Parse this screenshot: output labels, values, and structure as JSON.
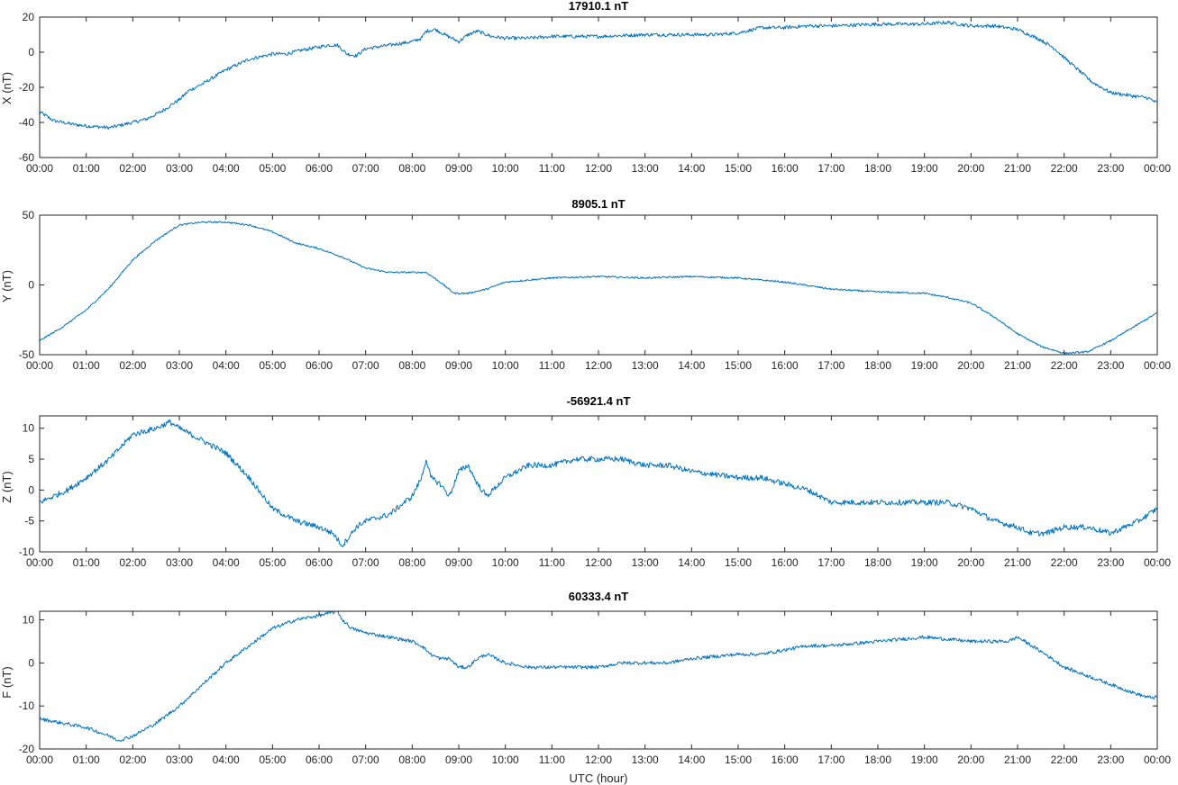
{
  "figure": {
    "x_label": "UTC (hour)"
  },
  "chart_data": [
    {
      "type": "line",
      "title": "17910.1 nT",
      "ylabel": "X (nT)",
      "xlim": [
        0,
        24
      ],
      "ylim": [
        -60,
        20
      ],
      "yticks": [
        -60,
        -40,
        -20,
        0,
        20
      ],
      "xtick_labels": [
        "00:00",
        "01:00",
        "02:00",
        "03:00",
        "04:00",
        "05:00",
        "06:00",
        "07:00",
        "08:00",
        "09:00",
        "10:00",
        "11:00",
        "12:00",
        "13:00",
        "14:00",
        "15:00",
        "16:00",
        "17:00",
        "18:00",
        "19:00",
        "20:00",
        "21:00",
        "22:00",
        "23:00",
        "00:00"
      ],
      "color": "#0072BD",
      "noise": 1.0,
      "series": [
        {
          "x": [
            0,
            0.3,
            0.7,
            1.0,
            1.5,
            2.0,
            2.3,
            2.6,
            3.0,
            3.2,
            3.5,
            4.0,
            4.5,
            5.0,
            5.3,
            5.6,
            6.0,
            6.2,
            6.4,
            6.6,
            6.8,
            7.0,
            7.5,
            8.0,
            8.2,
            8.3,
            8.5,
            8.7,
            9.0,
            9.2,
            9.4,
            9.7,
            10.0,
            10.5,
            11.0,
            11.5,
            12.0,
            13.0,
            14.0,
            14.5,
            15.0,
            15.5,
            16.0,
            16.5,
            17.0,
            18.0,
            19.0,
            19.5,
            20.0,
            20.5,
            21.0,
            21.5,
            21.8,
            22.0,
            22.3,
            22.6,
            23.0,
            23.5,
            23.8,
            24.0
          ],
          "values": [
            -34,
            -39,
            -41,
            -42,
            -43,
            -40,
            -38,
            -34,
            -27,
            -22,
            -18,
            -10,
            -4,
            -1,
            -1,
            1,
            3,
            4,
            4,
            -1,
            -2,
            2,
            4,
            6,
            8,
            12,
            13,
            10,
            6,
            10,
            12,
            9,
            8,
            8,
            9,
            9,
            9,
            10,
            10,
            10,
            11,
            14,
            14,
            15,
            15,
            16,
            16,
            17,
            15,
            15,
            13,
            7,
            2,
            -3,
            -10,
            -17,
            -23,
            -25,
            -26,
            -29
          ]
        }
      ]
    },
    {
      "type": "line",
      "title": "8905.1 nT",
      "ylabel": "Y (nT)",
      "xlim": [
        0,
        24
      ],
      "ylim": [
        -50,
        50
      ],
      "yticks": [
        -50,
        0,
        50
      ],
      "xtick_labels": [
        "00:00",
        "01:00",
        "02:00",
        "03:00",
        "04:00",
        "05:00",
        "06:00",
        "07:00",
        "08:00",
        "09:00",
        "10:00",
        "11:00",
        "12:00",
        "13:00",
        "14:00",
        "15:00",
        "16:00",
        "17:00",
        "18:00",
        "19:00",
        "20:00",
        "21:00",
        "22:00",
        "23:00",
        "00:00"
      ],
      "color": "#0072BD",
      "noise": 0.6,
      "series": [
        {
          "x": [
            0,
            0.5,
            1.0,
            1.5,
            2.0,
            2.5,
            3.0,
            3.5,
            4.0,
            4.5,
            5.0,
            5.5,
            6.0,
            6.5,
            7.0,
            7.5,
            8.0,
            8.3,
            8.6,
            8.9,
            9.2,
            9.6,
            10.0,
            11.0,
            12.0,
            13.0,
            14.0,
            15.0,
            16.0,
            17.0,
            18.0,
            19.0,
            19.5,
            20.0,
            20.5,
            21.0,
            21.5,
            22.0,
            22.5,
            23.0,
            23.5,
            24.0
          ],
          "values": [
            -40,
            -30,
            -18,
            -2,
            18,
            32,
            43,
            45,
            45,
            43,
            38,
            30,
            26,
            20,
            12,
            9,
            9,
            9,
            2,
            -6,
            -6,
            -3,
            2,
            5,
            6,
            5,
            6,
            5,
            2,
            -3,
            -5,
            -6,
            -9,
            -13,
            -23,
            -35,
            -44,
            -49,
            -48,
            -40,
            -30,
            -20
          ]
        }
      ]
    },
    {
      "type": "line",
      "title": "-56921.4 nT",
      "ylabel": "Z (nT)",
      "xlim": [
        0,
        24
      ],
      "ylim": [
        -10,
        12
      ],
      "yticks": [
        -10,
        -5,
        0,
        5,
        10
      ],
      "xtick_labels": [
        "00:00",
        "01:00",
        "02:00",
        "03:00",
        "04:00",
        "05:00",
        "06:00",
        "07:00",
        "08:00",
        "09:00",
        "10:00",
        "11:00",
        "12:00",
        "13:00",
        "14:00",
        "15:00",
        "16:00",
        "17:00",
        "18:00",
        "19:00",
        "20:00",
        "21:00",
        "22:00",
        "23:00",
        "00:00"
      ],
      "color": "#0072BD",
      "noise": 0.45,
      "series": [
        {
          "x": [
            0,
            0.3,
            0.6,
            1.0,
            1.5,
            2.0,
            2.5,
            2.8,
            3.0,
            3.5,
            4.0,
            4.5,
            5.0,
            5.5,
            6.0,
            6.3,
            6.5,
            6.8,
            7.0,
            7.5,
            8.0,
            8.2,
            8.3,
            8.4,
            8.6,
            8.8,
            9.0,
            9.2,
            9.4,
            9.6,
            10.0,
            10.5,
            11.0,
            11.5,
            12.0,
            12.5,
            13.0,
            13.5,
            14.0,
            15.0,
            15.5,
            16.0,
            16.5,
            17.0,
            18.0,
            19.0,
            19.5,
            20.0,
            20.5,
            21.0,
            21.3,
            21.6,
            22.0,
            22.5,
            23.0,
            23.3,
            23.6,
            23.8,
            24.0
          ],
          "values": [
            -2,
            -1,
            0,
            2,
            5,
            9,
            10,
            11,
            10,
            8,
            6,
            2,
            -3,
            -5,
            -6,
            -7,
            -9,
            -6,
            -5,
            -4,
            -1,
            2,
            5,
            2,
            1,
            -1,
            3,
            4,
            1,
            -1,
            2,
            4,
            4,
            5,
            5,
            5,
            4,
            4,
            3,
            2,
            2,
            1,
            0,
            -2,
            -2,
            -2,
            -2,
            -3,
            -5,
            -6,
            -7,
            -7,
            -6,
            -6,
            -7,
            -6,
            -5,
            -4,
            -3
          ]
        }
      ]
    },
    {
      "type": "line",
      "title": "60333.4 nT",
      "ylabel": "F (nT)",
      "xlim": [
        0,
        24
      ],
      "ylim": [
        -20,
        12
      ],
      "yticks": [
        -20,
        -10,
        0,
        10
      ],
      "xtick_labels": [
        "00:00",
        "01:00",
        "02:00",
        "03:00",
        "04:00",
        "05:00",
        "06:00",
        "07:00",
        "08:00",
        "09:00",
        "10:00",
        "11:00",
        "12:00",
        "13:00",
        "14:00",
        "15:00",
        "16:00",
        "17:00",
        "18:00",
        "19:00",
        "20:00",
        "21:00",
        "22:00",
        "23:00",
        "00:00"
      ],
      "color": "#0072BD",
      "noise": 0.4,
      "series": [
        {
          "x": [
            0,
            0.5,
            1.0,
            1.5,
            1.7,
            2.0,
            2.5,
            3.0,
            3.5,
            4.0,
            4.5,
            5.0,
            5.5,
            6.0,
            6.4,
            6.5,
            6.7,
            7.0,
            7.5,
            8.0,
            8.2,
            8.4,
            8.6,
            8.8,
            9.0,
            9.2,
            9.4,
            9.6,
            10.0,
            10.5,
            11.0,
            11.5,
            12.0,
            12.5,
            13.0,
            13.5,
            14.0,
            15.0,
            15.5,
            16.0,
            16.5,
            17.0,
            18.0,
            19.0,
            20.0,
            20.5,
            20.8,
            21.0,
            21.3,
            21.6,
            22.0,
            22.5,
            23.0,
            23.5,
            23.8,
            24.0
          ],
          "values": [
            -13,
            -14,
            -15,
            -17,
            -18,
            -17,
            -14,
            -10,
            -5,
            0,
            4,
            8,
            10,
            11,
            12,
            10,
            8,
            7,
            6,
            5,
            4,
            2,
            1,
            1,
            -1,
            -1,
            1,
            2,
            0,
            -1,
            -1,
            -1,
            -1,
            0,
            0,
            0,
            1,
            2,
            2,
            3,
            4,
            4,
            5,
            6,
            5,
            5,
            5,
            6,
            4,
            2,
            -1,
            -3,
            -5,
            -7,
            -8,
            -8
          ]
        }
      ]
    }
  ]
}
